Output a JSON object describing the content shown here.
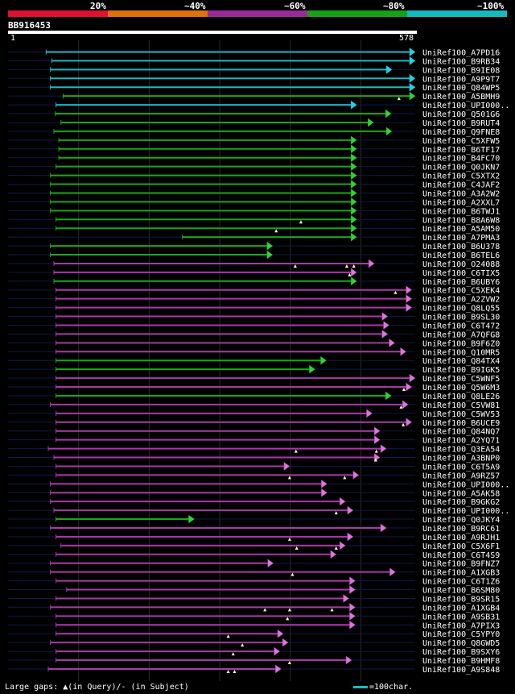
{
  "legend": {
    "labels": [
      "20%",
      "~40%",
      "~60%",
      "~80%",
      "~100%"
    ],
    "colors": [
      "#e0102f",
      "#e07010",
      "#9a2a9a",
      "#16a016",
      "#18b8c0"
    ]
  },
  "query": {
    "id": "BB916453",
    "start": "1",
    "end": "578",
    "length": 578
  },
  "footer": {
    "gaps_text": "Large gaps: ▲(in Query)/- (in Subject)",
    "scale_text": "=100char."
  },
  "chart_data": {
    "type": "alignment",
    "title": "BB916453",
    "xlim": [
      1,
      578
    ],
    "hits": [
      {
        "label": "UniRef100_A7PD16",
        "start": 55,
        "end": 578,
        "cls": "c"
      },
      {
        "label": "UniRef100_B9RB34",
        "start": 63,
        "end": 578,
        "cls": "c"
      },
      {
        "label": "UniRef100_B9IE08",
        "start": 61,
        "end": 545,
        "cls": "c"
      },
      {
        "label": "UniRef100_A9P9T7",
        "start": 61,
        "end": 578,
        "cls": "c"
      },
      {
        "label": "UniRef100_Q84WP5",
        "start": 61,
        "end": 578,
        "cls": "c"
      },
      {
        "label": "UniRef100_A5BMH9",
        "start": 79,
        "end": 578,
        "cls": "g",
        "tri": [
          555
        ]
      },
      {
        "label": "UniRef100_UPI000..",
        "start": 69,
        "end": 495,
        "cls": "c"
      },
      {
        "label": "UniRef100_Q501G6",
        "start": 68,
        "end": 544,
        "cls": "g"
      },
      {
        "label": "UniRef100_B9RUT4",
        "start": 76,
        "end": 519,
        "cls": "g"
      },
      {
        "label": "UniRef100_Q9FNE8",
        "start": 66,
        "end": 545,
        "cls": "g"
      },
      {
        "label": "UniRef100_C5XFW5",
        "start": 73,
        "end": 495,
        "cls": "g"
      },
      {
        "label": "UniRef100_B6TF17",
        "start": 73,
        "end": 495,
        "cls": "g"
      },
      {
        "label": "UniRef100_B4FC70",
        "start": 73,
        "end": 495,
        "cls": "g"
      },
      {
        "label": "UniRef100_Q0JKN7",
        "start": 69,
        "end": 495,
        "cls": "g"
      },
      {
        "label": "UniRef100_C5XTX2",
        "start": 61,
        "end": 495,
        "cls": "g"
      },
      {
        "label": "UniRef100_C4JAF2",
        "start": 61,
        "end": 495,
        "cls": "g"
      },
      {
        "label": "UniRef100_A3A2W2",
        "start": 61,
        "end": 495,
        "cls": "g"
      },
      {
        "label": "UniRef100_A2XXL7",
        "start": 61,
        "end": 495,
        "cls": "g"
      },
      {
        "label": "UniRef100_B6TWJ1",
        "start": 61,
        "end": 495,
        "cls": "g"
      },
      {
        "label": "UniRef100_B8A6W8",
        "start": 69,
        "end": 495,
        "cls": "g",
        "tri": [
          416
        ]
      },
      {
        "label": "UniRef100_A5AM50",
        "start": 69,
        "end": 495,
        "cls": "g",
        "tri": [
          381
        ]
      },
      {
        "label": "UniRef100_A7PMA3",
        "start": 248,
        "end": 495,
        "cls": "g"
      },
      {
        "label": "UniRef100_B6U378",
        "start": 61,
        "end": 376,
        "cls": "g"
      },
      {
        "label": "UniRef100_B6TEL6",
        "start": 61,
        "end": 376,
        "cls": "g"
      },
      {
        "label": "UniRef100_O24088",
        "start": 66,
        "end": 520,
        "cls": "m",
        "tri": [
          408,
          481,
          491
        ]
      },
      {
        "label": "UniRef100_C6TIX5",
        "start": 66,
        "end": 495,
        "cls": "m",
        "tri": [
          485
        ]
      },
      {
        "label": "UniRef100_B6UBY6",
        "start": 66,
        "end": 495,
        "cls": "g"
      },
      {
        "label": "UniRef100_C5XEK4",
        "start": 69,
        "end": 573,
        "cls": "m",
        "tri": [
          550
        ]
      },
      {
        "label": "UniRef100_A2ZVW2",
        "start": 69,
        "end": 573,
        "cls": "m"
      },
      {
        "label": "UniRef100_Q8LQ55",
        "start": 69,
        "end": 573,
        "cls": "m"
      },
      {
        "label": "UniRef100_B9SL30",
        "start": 69,
        "end": 539,
        "cls": "m"
      },
      {
        "label": "UniRef100_C6T472",
        "start": 69,
        "end": 541,
        "cls": "m"
      },
      {
        "label": "UniRef100_A7QFG8",
        "start": 69,
        "end": 539,
        "cls": "m"
      },
      {
        "label": "UniRef100_B9F6Z0",
        "start": 69,
        "end": 549,
        "cls": "m"
      },
      {
        "label": "UniRef100_Q10MR5",
        "start": 69,
        "end": 565,
        "cls": "m"
      },
      {
        "label": "UniRef100_Q84TX4",
        "start": 69,
        "end": 452,
        "cls": "g"
      },
      {
        "label": "UniRef100_B9IGK5",
        "start": 69,
        "end": 436,
        "cls": "g"
      },
      {
        "label": "UniRef100_C5WNF5",
        "start": 69,
        "end": 578,
        "cls": "m"
      },
      {
        "label": "UniRef100_Q5W6M3",
        "start": 69,
        "end": 573,
        "cls": "m",
        "tri": [
          562
        ]
      },
      {
        "label": "UniRef100_Q8LE26",
        "start": 69,
        "end": 544,
        "cls": "g"
      },
      {
        "label": "UniRef100_C5VW81",
        "start": 61,
        "end": 568,
        "cls": "m",
        "tri": [
          558
        ]
      },
      {
        "label": "UniRef100_C5WV53",
        "start": 69,
        "end": 517,
        "cls": "m"
      },
      {
        "label": "UniRef100_B6UCE9",
        "start": 69,
        "end": 573,
        "cls": "m",
        "tri": [
          561
        ]
      },
      {
        "label": "UniRef100_Q84NQ7",
        "start": 69,
        "end": 528,
        "cls": "m"
      },
      {
        "label": "UniRef100_A2YQ71",
        "start": 69,
        "end": 528,
        "cls": "m"
      },
      {
        "label": "UniRef100_Q3EA54",
        "start": 58,
        "end": 537,
        "cls": "m",
        "tri": [
          409,
          523
        ]
      },
      {
        "label": "UniRef100_A3BNP0",
        "start": 66,
        "end": 528,
        "cls": "m",
        "tri": [
          522
        ]
      },
      {
        "label": "UniRef100_C6T5A9",
        "start": 69,
        "end": 400,
        "cls": "m"
      },
      {
        "label": "UniRef100_A9RZ57",
        "start": 69,
        "end": 498,
        "cls": "m",
        "tri": [
          400,
          478
        ]
      },
      {
        "label": "UniRef100_UPI000..",
        "start": 61,
        "end": 453,
        "cls": "m"
      },
      {
        "label": "UniRef100_A5AK58",
        "start": 61,
        "end": 453,
        "cls": "m"
      },
      {
        "label": "UniRef100_B9GKG2",
        "start": 61,
        "end": 479,
        "cls": "m"
      },
      {
        "label": "UniRef100_UPI000..",
        "start": 66,
        "end": 490,
        "cls": "m",
        "tri": [
          466
        ]
      },
      {
        "label": "UniRef100_Q0JKY4",
        "start": 69,
        "end": 265,
        "cls": "g"
      },
      {
        "label": "UniRef100_B9RC61",
        "start": 61,
        "end": 537,
        "cls": "m"
      },
      {
        "label": "UniRef100_A9RJH1",
        "start": 69,
        "end": 490,
        "cls": "m",
        "tri": [
          400
        ]
      },
      {
        "label": "UniRef100_C5X6F1",
        "start": 76,
        "end": 479,
        "cls": "m",
        "tri": [
          410,
          466
        ]
      },
      {
        "label": "UniRef100_C6T4S9",
        "start": 69,
        "end": 466,
        "cls": "m"
      },
      {
        "label": "UniRef100_B9FNZ7",
        "start": 61,
        "end": 377,
        "cls": "m"
      },
      {
        "label": "UniRef100_A1XGB3",
        "start": 61,
        "end": 550,
        "cls": "m",
        "tri": [
          404
        ]
      },
      {
        "label": "UniRef100_C6T1Z6",
        "start": 69,
        "end": 493,
        "cls": "m"
      },
      {
        "label": "UniRef100_B6SM80",
        "start": 84,
        "end": 493,
        "cls": "m"
      },
      {
        "label": "UniRef100_B9SR15",
        "start": 69,
        "end": 484,
        "cls": "m"
      },
      {
        "label": "UniRef100_A1XGB4",
        "start": 61,
        "end": 493,
        "cls": "m",
        "tri": [
          365,
          400,
          460
        ]
      },
      {
        "label": "UniRef100_A9SB31",
        "start": 69,
        "end": 493,
        "cls": "m",
        "tri": [
          397
        ]
      },
      {
        "label": "UniRef100_A7PIX3",
        "start": 69,
        "end": 493,
        "cls": "m"
      },
      {
        "label": "UniRef100_C5YPY0",
        "start": 69,
        "end": 391,
        "cls": "m",
        "tri": [
          313
        ]
      },
      {
        "label": "UniRef100_Q8GWD5",
        "start": 61,
        "end": 398,
        "cls": "m",
        "tri": [
          333
        ]
      },
      {
        "label": "UniRef100_B9SXY6",
        "start": 69,
        "end": 386,
        "cls": "m",
        "tri": [
          320
        ]
      },
      {
        "label": "UniRef100_B9HMF8",
        "start": 69,
        "end": 488,
        "cls": "m",
        "tri": [
          400
        ]
      },
      {
        "label": "UniRef100_A9S848",
        "start": 58,
        "end": 388,
        "cls": "m",
        "tri": [
          313,
          322
        ]
      }
    ]
  }
}
